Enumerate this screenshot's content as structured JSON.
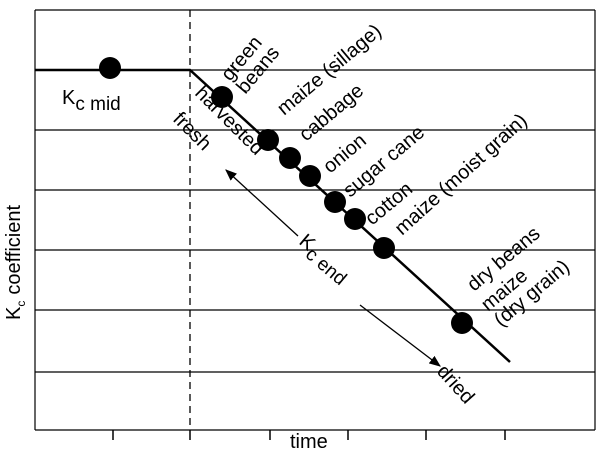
{
  "diagram": {
    "y_axis_label": {
      "symbol": "K",
      "subscript": "c",
      "text": "coefficient"
    },
    "x_axis_label": "time",
    "kc_mid": {
      "symbol": "K",
      "subscript": "c mid"
    },
    "kc_end": {
      "symbol": "K",
      "subscript": "c end"
    },
    "harvested_fresh": [
      "harvested",
      "fresh"
    ],
    "dried": "dried",
    "crops": [
      {
        "lines": [
          "green",
          "beans"
        ]
      },
      {
        "lines": [
          "maize (sillage)"
        ]
      },
      {
        "lines": [
          "cabbage"
        ]
      },
      {
        "lines": [
          "onion"
        ]
      },
      {
        "lines": [
          "sugar cane"
        ]
      },
      {
        "lines": [
          "cotton"
        ]
      },
      {
        "lines": [
          "maize (moist grain)"
        ]
      },
      {
        "lines": [
          "dry beans"
        ]
      },
      {
        "lines": [
          "maize",
          "(dry grain)"
        ]
      }
    ]
  }
}
